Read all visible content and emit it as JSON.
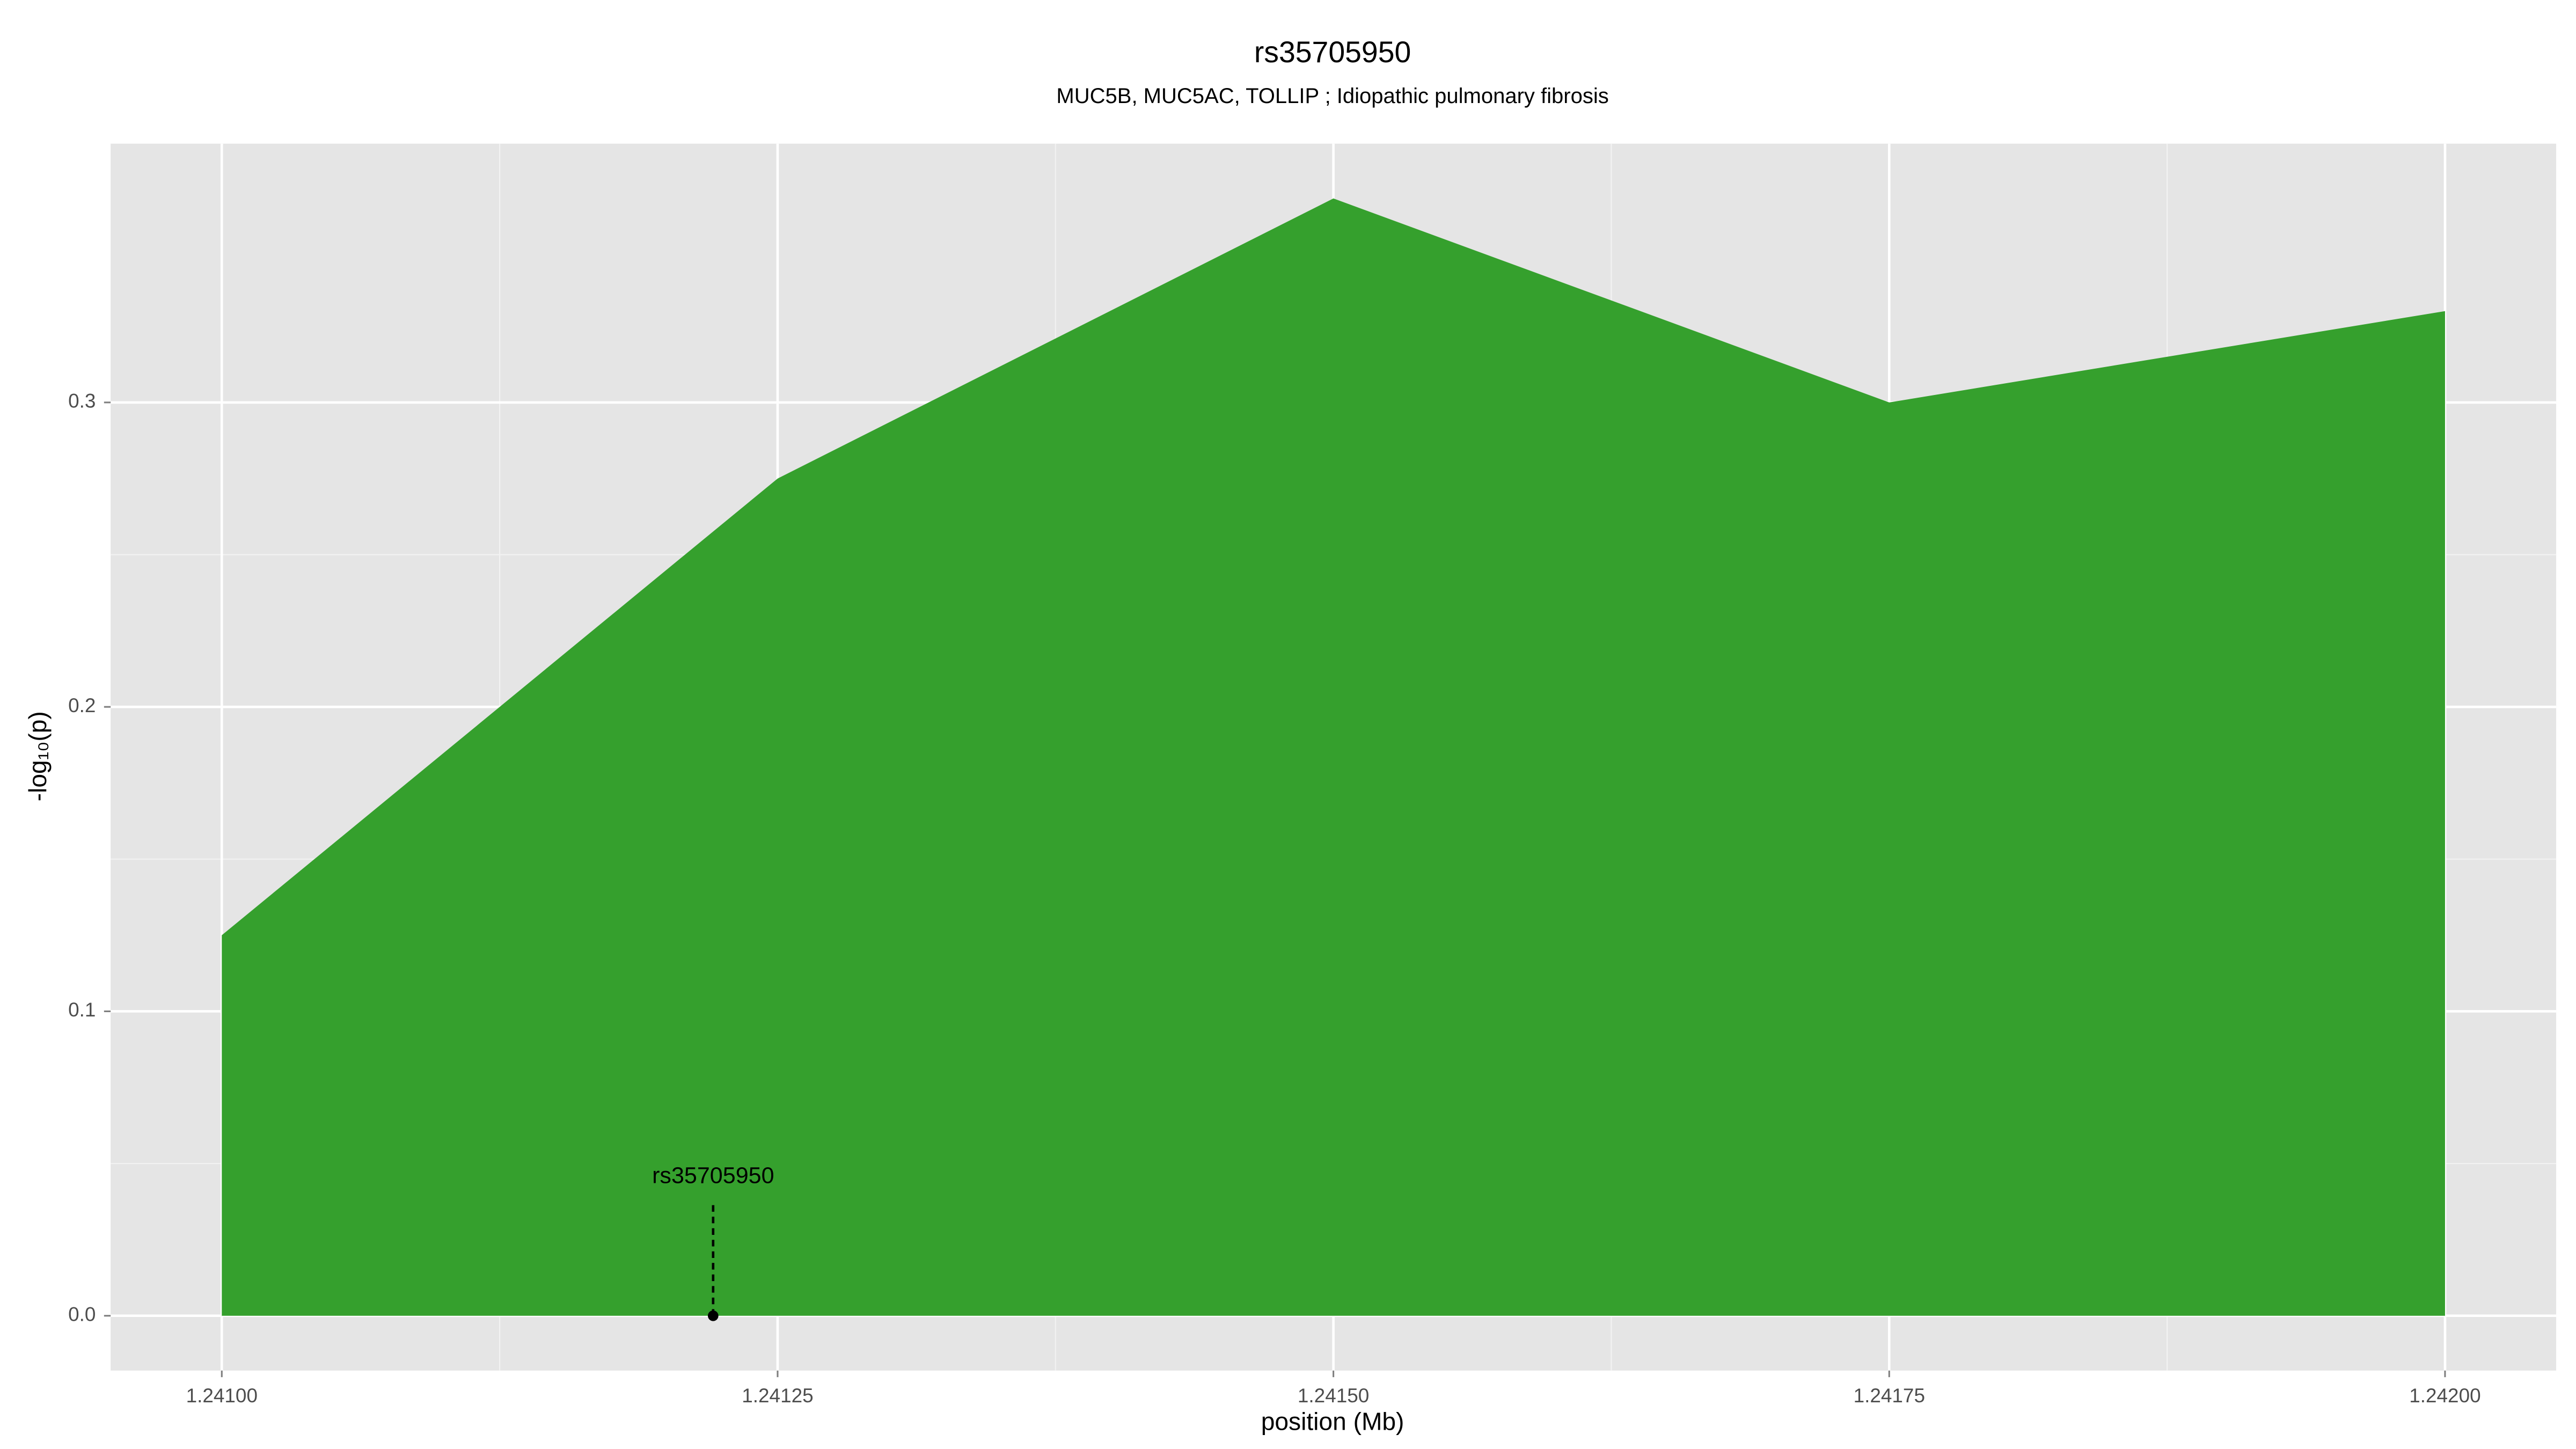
{
  "chart_data": {
    "type": "area",
    "title": "rs35705950",
    "subtitle": "MUC5B, MUC5AC, TOLLIP ; Idiopathic pulmonary fibrosis",
    "x_label": "position (Mb)",
    "y_label": "-log₁₀(p)",
    "x": [
      1.241,
      1.24125,
      1.2415,
      1.24175,
      1.242
    ],
    "values": [
      0.125,
      0.275,
      0.367,
      0.3,
      0.33
    ],
    "color": "#35a02d",
    "xlim": [
      1.24095,
      1.24205
    ],
    "ylim": [
      -0.018,
      0.385
    ],
    "xticks": [
      {
        "value": 1.241,
        "label": "1.24100"
      },
      {
        "value": 1.24125,
        "label": "1.24125"
      },
      {
        "value": 1.2415,
        "label": "1.24150"
      },
      {
        "value": 1.24175,
        "label": "1.24175"
      },
      {
        "value": 1.242,
        "label": "1.24200"
      }
    ],
    "yticks": [
      {
        "value": 0,
        "label": "0.0"
      },
      0.1,
      0.2,
      0.3
    ],
    "grid": true,
    "annotation": {
      "label": "rs35705950",
      "x": 1.241221,
      "y": 0
    }
  }
}
